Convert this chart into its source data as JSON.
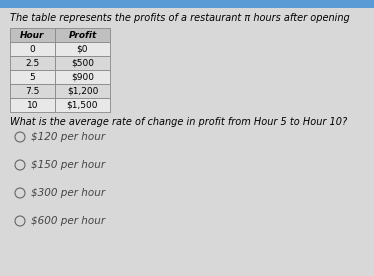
{
  "title": "The table represents the profits of a restaurant π hours after opening",
  "table_headers": [
    "Hour",
    "Profit"
  ],
  "table_data": [
    [
      "0",
      "$0"
    ],
    [
      "2.5",
      "$500"
    ],
    [
      "5",
      "$900"
    ],
    [
      "7.5",
      "$1,200"
    ],
    [
      "10",
      "$1,500"
    ]
  ],
  "question": "What is the average rate of change in profit from Hour 5 to Hour 10?",
  "choices": [
    "$120 per hour",
    "$150 per hour",
    "$300 per hour",
    "$600 per hour"
  ],
  "bg_color": "#d8d8d8",
  "top_bar_color": "#5b9bd5",
  "title_fontsize": 7.0,
  "question_fontsize": 7.0,
  "choice_fontsize": 7.5,
  "table_fontsize": 6.5
}
